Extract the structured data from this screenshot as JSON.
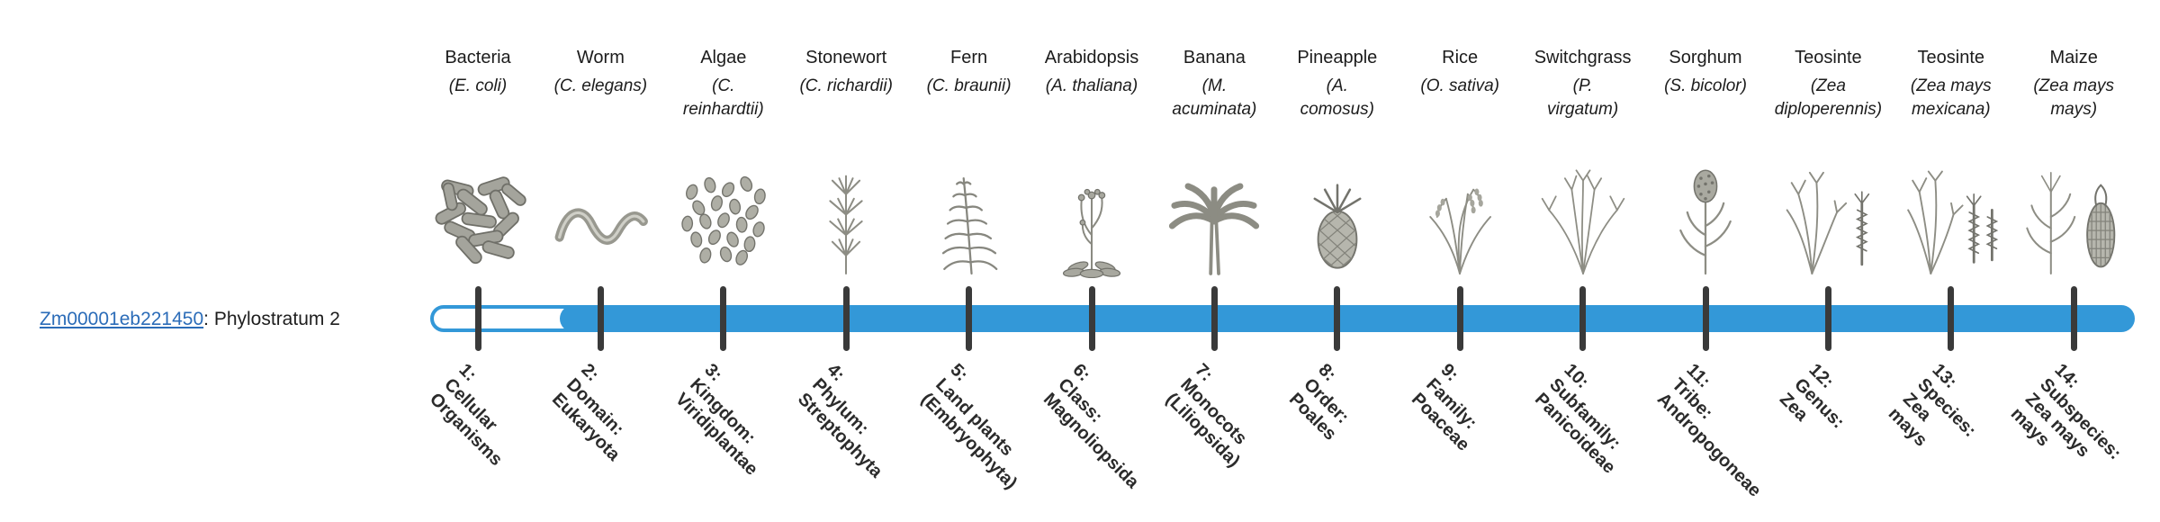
{
  "colors": {
    "bar_blue": "#3398d8",
    "tick_dark": "#3a3a3a",
    "link_blue": "#2b6cb8",
    "text_black": "#1e1e1e"
  },
  "gene": {
    "id": "Zm00001eb221450",
    "suffix": ": Phylostratum 2",
    "phylostratum": "Phylostratum 2"
  },
  "timeline": {
    "strata_count": 14,
    "filled_from_stratum": 2
  },
  "organisms": [
    {
      "name": "Bacteria",
      "sci": "(E. coli)",
      "icon": "bacteria-icon"
    },
    {
      "name": "Worm",
      "sci": "(C. elegans)",
      "icon": "worm-icon"
    },
    {
      "name": "Algae",
      "sci": "(C.\nreinhardtii)",
      "icon": "algae-icon"
    },
    {
      "name": "Stonewort",
      "sci": "(C. richardii)",
      "icon": "stonewort-icon"
    },
    {
      "name": "Fern",
      "sci": "(C. braunii)",
      "icon": "fern-icon"
    },
    {
      "name": "Arabidopsis",
      "sci": "(A. thaliana)",
      "icon": "arabidopsis-icon"
    },
    {
      "name": "Banana",
      "sci": "(M.\nacuminata)",
      "icon": "banana-icon"
    },
    {
      "name": "Pineapple",
      "sci": "(A.\ncomosus)",
      "icon": "pineapple-icon"
    },
    {
      "name": "Rice",
      "sci": "(O. sativa)",
      "icon": "rice-icon"
    },
    {
      "name": "Switchgrass",
      "sci": "(P.\nvirgatum)",
      "icon": "switchgrass-icon"
    },
    {
      "name": "Sorghum",
      "sci": "(S. bicolor)",
      "icon": "sorghum-icon"
    },
    {
      "name": "Teosinte",
      "sci": "(Zea\ndiploperennis)",
      "icon": "teosinte-icon"
    },
    {
      "name": "Teosinte",
      "sci": "(Zea mays\nmexicana)",
      "icon": "teosinte-mexicana-icon"
    },
    {
      "name": "Maize",
      "sci": "(Zea mays\nmays)",
      "icon": "maize-icon"
    }
  ],
  "strata": [
    "1:\nCellular\nOrganisms",
    "2:\nDomain:\nEukaryota",
    "3:\nKingdom:\nViridiplantae",
    "4:\nPhylum:\nStreptophyta",
    "5:\nLand plants\n(Embryophyta)",
    "6:\nClass:\nMagnoliopsida",
    "7:\nMonocots\n(Liliopsida)",
    "8:\nOrder:\nPoales",
    "9:\nFamily:\nPoaceae",
    "10:\nSubfamily:\nPanicoideae",
    "11:\nTribe:\nAndropogoneae",
    "12:\nGenus:\nZea",
    "13:\nSpecies:\nZea\nmays",
    "14:\nSubspecies:\nZea mays\nmays"
  ]
}
